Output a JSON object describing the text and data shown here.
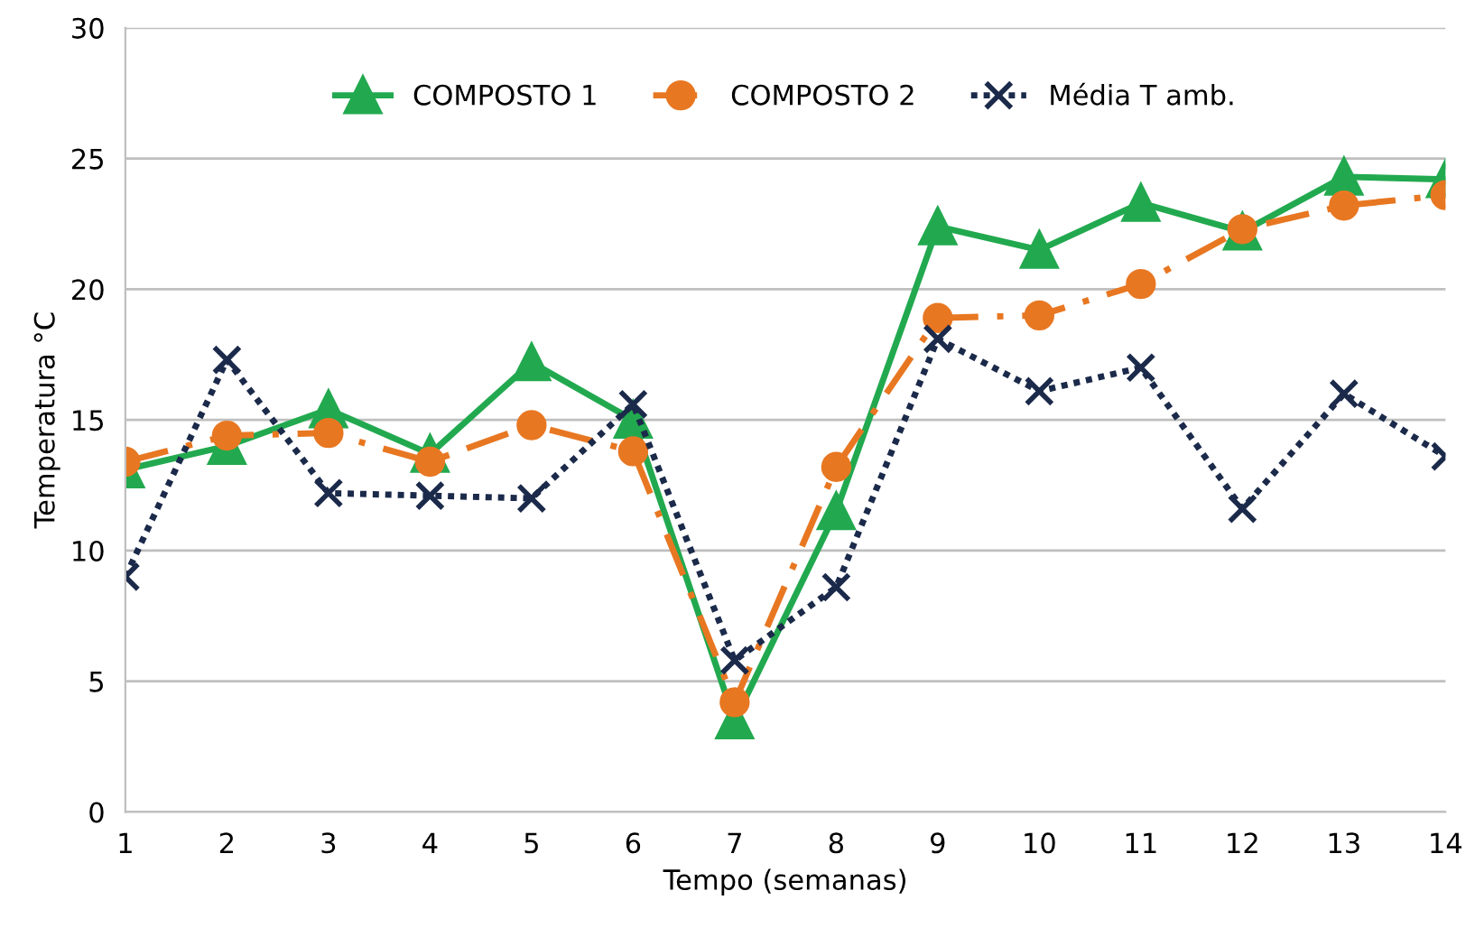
{
  "chart_data": {
    "type": "line",
    "xlabel": "Tempo (semanas)",
    "ylabel": "Temperatura °C",
    "x": [
      1,
      2,
      3,
      4,
      5,
      6,
      7,
      8,
      9,
      10,
      11,
      12,
      13,
      14
    ],
    "xlim": [
      1,
      14
    ],
    "xticks": [
      1,
      2,
      3,
      4,
      5,
      6,
      7,
      8,
      9,
      10,
      11,
      12,
      13,
      14
    ],
    "ylim": [
      0,
      30
    ],
    "yticks": [
      0,
      5,
      10,
      15,
      20,
      25,
      30
    ],
    "grid": "y",
    "legend": "top",
    "series": [
      {
        "name": "COMPOSTO 1",
        "color": "#22a94f",
        "marker": "triangle",
        "line_style": "solid",
        "values": [
          13.1,
          14.0,
          15.4,
          13.7,
          17.2,
          15.0,
          3.5,
          11.5,
          22.4,
          21.5,
          23.3,
          22.2,
          24.3,
          24.2
        ]
      },
      {
        "name": "COMPOSTO 2",
        "color": "#e87722",
        "marker": "circle",
        "line_style": "dashed",
        "values": [
          13.4,
          14.4,
          14.5,
          13.4,
          14.8,
          13.8,
          4.2,
          13.2,
          18.9,
          19.0,
          20.2,
          22.3,
          23.2,
          23.6
        ]
      },
      {
        "name": "Média T amb.",
        "color": "#1b2a4a",
        "marker": "cross",
        "line_style": "dotted",
        "values": [
          9.0,
          17.3,
          12.2,
          12.1,
          12.0,
          15.6,
          5.8,
          8.6,
          18.1,
          16.1,
          17.0,
          11.6,
          16.0,
          13.6
        ]
      }
    ]
  }
}
